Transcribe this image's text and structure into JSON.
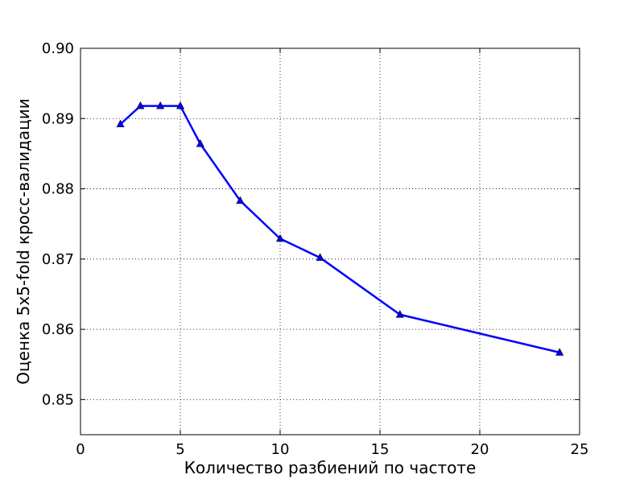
{
  "chart_data": {
    "type": "line",
    "title": "",
    "xlabel": "Количество разбиений по частоте",
    "ylabel": "Оценка 5x5-fold кросс-валидации",
    "xlim": [
      0,
      25
    ],
    "ylim": [
      0.845,
      0.9
    ],
    "xticks": [
      0,
      5,
      10,
      15,
      20,
      25
    ],
    "yticks": [
      0.85,
      0.86,
      0.87,
      0.88,
      0.89,
      0.9
    ],
    "xtick_labels": [
      "0",
      "5",
      "10",
      "15",
      "20",
      "25"
    ],
    "ytick_labels": [
      "0.85",
      "0.86",
      "0.87",
      "0.88",
      "0.89",
      "0.90"
    ],
    "grid": true,
    "legend": "none",
    "series": [
      {
        "color": "#0000ff",
        "marker": "triangle",
        "x": [
          2,
          3,
          4,
          5,
          6,
          8,
          10,
          12,
          16,
          24
        ],
        "y": [
          0.8892,
          0.8918,
          0.8918,
          0.8918,
          0.8864,
          0.8783,
          0.8729,
          0.8702,
          0.8621,
          0.8567
        ]
      }
    ]
  }
}
